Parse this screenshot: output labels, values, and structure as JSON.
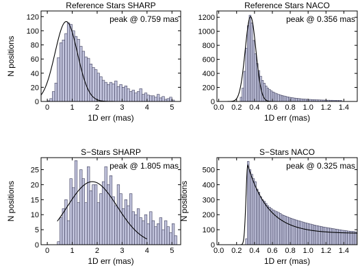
{
  "chart_data": [
    {
      "type": "bar",
      "title": "Reference Stars SHARP",
      "xlabel": "1D err (mas)",
      "ylabel": "N positions",
      "xlim": [
        -0.25,
        5.35
      ],
      "ylim": [
        0,
        128
      ],
      "xticks": [
        0,
        1,
        2,
        3,
        4,
        5
      ],
      "xtick_labels": [
        "0",
        "1",
        "2",
        "3",
        "4",
        "5"
      ],
      "yticks": [
        0,
        20,
        40,
        60,
        80,
        100,
        120
      ],
      "ytick_labels": [
        "0",
        "20",
        "40",
        "60",
        "80",
        "100",
        "120"
      ],
      "annotation": "peak @ 0.759 mas",
      "bin_start": 0.0,
      "bin_width": 0.1,
      "values": [
        1,
        4,
        14,
        26,
        62,
        83,
        87,
        96,
        111,
        109,
        100,
        92,
        88,
        78,
        71,
        63,
        61,
        53,
        48,
        45,
        40,
        35,
        30,
        27,
        24,
        27,
        25,
        29,
        21,
        24,
        20,
        22,
        18,
        14,
        16,
        12,
        14,
        18,
        10,
        12,
        9,
        8,
        8,
        6,
        10,
        5,
        7,
        3,
        4,
        6,
        2
      ],
      "fit": {
        "type": "gaussian",
        "peak_x": 0.759,
        "amplitude": 113,
        "sigma": 0.45
      }
    },
    {
      "type": "bar",
      "title": "Reference Stars NACO",
      "xlabel": "1D err (mas)",
      "ylabel": "",
      "xlim": [
        -0.02,
        1.55
      ],
      "ylim": [
        0,
        1290
      ],
      "xticks": [
        0.0,
        0.2,
        0.4,
        0.6,
        0.8,
        1.0,
        1.2,
        1.4
      ],
      "xtick_labels": [
        "0.0",
        "0.2",
        "0.4",
        "0.6",
        "0.8",
        "1.0",
        "1.2",
        "1.4"
      ],
      "yticks": [
        0,
        200,
        400,
        600,
        800,
        1000,
        1200
      ],
      "ytick_labels": [
        "0",
        "200",
        "400",
        "600",
        "800",
        "1000",
        "1200"
      ],
      "annotation": "peak @ 0.356 mas",
      "bin_start": 0.24,
      "bin_width": 0.02,
      "values": [
        60,
        190,
        430,
        760,
        1080,
        1230,
        1120,
        870,
        680,
        540,
        440,
        360,
        300,
        260,
        220,
        190,
        170,
        150,
        135,
        120,
        110,
        100,
        92,
        85,
        78,
        72,
        66,
        60,
        56,
        52,
        48,
        45,
        42,
        40,
        37,
        35,
        33,
        31,
        29,
        28,
        26,
        25,
        24,
        23,
        22,
        21,
        20,
        19,
        18,
        18,
        17,
        17,
        16,
        16,
        15,
        15,
        14
      ],
      "fit": {
        "type": "gaussian",
        "peak_x": 0.356,
        "amplitude": 1210,
        "sigma": 0.06
      }
    },
    {
      "type": "bar",
      "title": "S−Stars SHARP",
      "xlabel": "1D err (mas)",
      "ylabel": "N positions",
      "xlim": [
        -0.25,
        5.35
      ],
      "ylim": [
        0,
        29
      ],
      "xticks": [
        0,
        1,
        2,
        3,
        4,
        5
      ],
      "xtick_labels": [
        "0",
        "1",
        "2",
        "3",
        "4",
        "5"
      ],
      "yticks": [
        0,
        5,
        10,
        15,
        20,
        25
      ],
      "ytick_labels": [
        "0",
        "5",
        "10",
        "15",
        "20",
        "25"
      ],
      "annotation": "peak @ 1.805 mas",
      "bin_start": 0.4,
      "bin_width": 0.1,
      "values": [
        1,
        9,
        12,
        15,
        8,
        22,
        19,
        28,
        14,
        25,
        22,
        14,
        26,
        18,
        20,
        20,
        14,
        17,
        21,
        26,
        20,
        23,
        16,
        13,
        20,
        17,
        12,
        15,
        13,
        17,
        11,
        10,
        12,
        9,
        8,
        10,
        7,
        11,
        8,
        6,
        7,
        9,
        5,
        8,
        6,
        4,
        7,
        3
      ],
      "fit": {
        "type": "gaussian",
        "peak_x": 1.805,
        "amplitude": 21,
        "sigma": 1.0,
        "x_range": [
          0.4,
          4.0
        ]
      }
    },
    {
      "type": "bar",
      "title": "S−Stars NACO",
      "xlabel": "1D err (mas)",
      "ylabel": "N positions",
      "xlim": [
        -0.02,
        1.55
      ],
      "ylim": [
        0,
        580
      ],
      "xticks": [
        0.0,
        0.2,
        0.4,
        0.6,
        0.8,
        1.0,
        1.2,
        1.4
      ],
      "xtick_labels": [
        "0.0",
        "0.2",
        "0.4",
        "0.6",
        "0.8",
        "1.0",
        "1.2",
        "1.4"
      ],
      "yticks": [
        0,
        100,
        200,
        300,
        400,
        500
      ],
      "ytick_labels": [
        "0",
        "100",
        "200",
        "300",
        "400",
        "500"
      ],
      "annotation": "peak @ 0.325 mas",
      "bin_start": 0.3,
      "bin_width": 0.02,
      "values": [
        40,
        555,
        500,
        470,
        440,
        420,
        370,
        350,
        320,
        300,
        290,
        275,
        260,
        250,
        240,
        232,
        225,
        220,
        215,
        208,
        200,
        195,
        190,
        185,
        180,
        176,
        172,
        168,
        164,
        160,
        157,
        153,
        150,
        146,
        143,
        140,
        137,
        134,
        131,
        128,
        126,
        123,
        121,
        118,
        116,
        114,
        112,
        110,
        108,
        106,
        104,
        102,
        100,
        98,
        96,
        95,
        93,
        91,
        90,
        89,
        88,
        86
      ],
      "fit": {
        "type": "gaussian-plus-tail",
        "peak_x": 0.325,
        "amplitude": 530,
        "sigma": 0.02
      }
    }
  ]
}
